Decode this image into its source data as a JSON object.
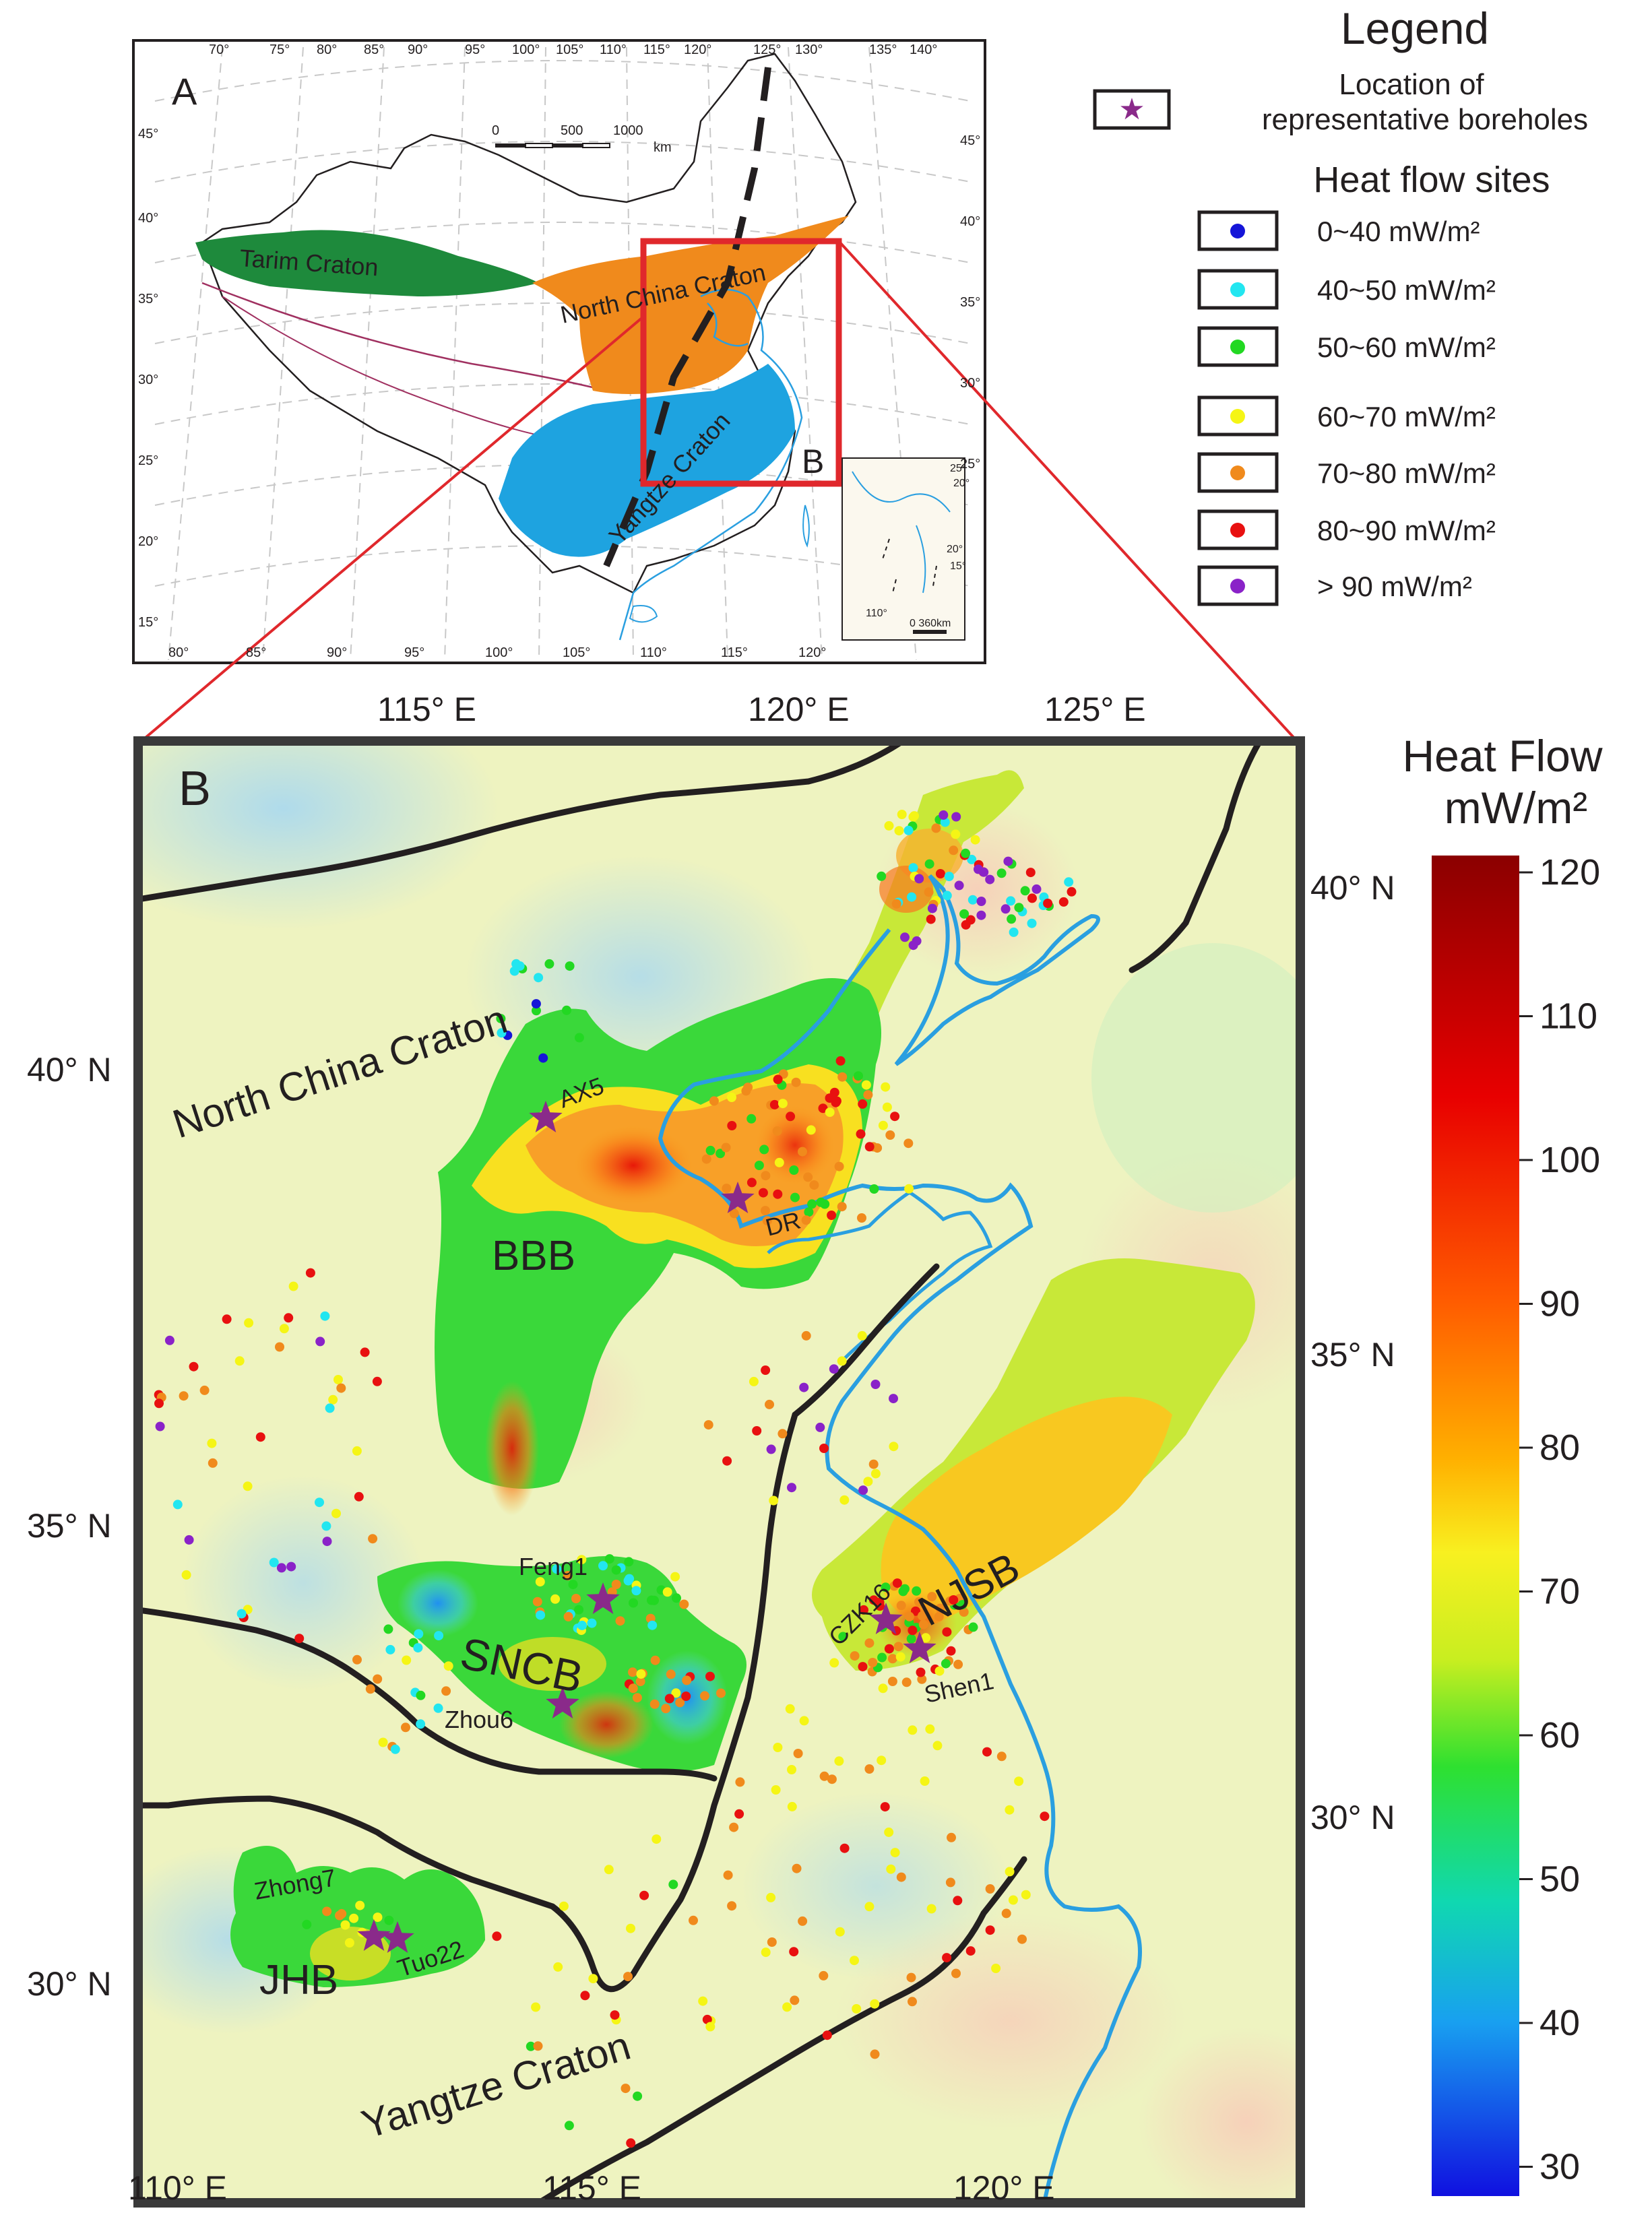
{
  "panel_a": {
    "label": "A",
    "lon_labels_top": [
      "70°",
      "75°",
      "80°",
      "85°",
      "90°",
      "95°",
      "100°",
      "105°",
      "110°",
      "115°",
      "120°",
      "125°",
      "130°",
      "135°",
      "140°"
    ],
    "lon_labels_bottom": [
      "80°",
      "85°",
      "90°",
      "95°",
      "100°",
      "105°",
      "110°",
      "115°",
      "120°"
    ],
    "lat_labels_left": [
      "45°",
      "40°",
      "35°",
      "30°",
      "25°",
      "20°",
      "15°"
    ],
    "lat_labels_right": [
      "45°",
      "40°",
      "35°",
      "30°",
      "25°"
    ],
    "scale_ticks": [
      "0",
      "500",
      "1000"
    ],
    "scale_unit": "km",
    "cratons": [
      {
        "name": "Tarim Craton",
        "color": "#1e8a3c"
      },
      {
        "name": "North China Craton",
        "color": "#f08a1c"
      },
      {
        "name": "Yangtze Craton",
        "color": "#1ea3e0"
      }
    ],
    "inset_box_label": "B",
    "inset_map": {
      "lat_labels": [
        "25°",
        "20°",
        "20°",
        "15°"
      ],
      "lon_label": "110°",
      "scale_text": "0    360km"
    }
  },
  "legend": {
    "title": "Legend",
    "borehole_label_line1": "Location of",
    "borehole_label_line2": "representative boreholes",
    "heat_flow_title": "Heat flow sites",
    "classes": [
      {
        "label": "0~40 mW/m²",
        "color": "#1515d8"
      },
      {
        "label": "40~50 mW/m²",
        "color": "#22e6f0"
      },
      {
        "label": "50~60 mW/m²",
        "color": "#22d822"
      },
      {
        "label": "60~70 mW/m²",
        "color": "#f5f515"
      },
      {
        "label": "70~80 mW/m²",
        "color": "#f08a1c"
      },
      {
        "label": "80~90 mW/m²",
        "color": "#e81010"
      },
      {
        "label": "> 90 mW/m²",
        "color": "#8a22c8"
      }
    ]
  },
  "panel_b": {
    "label": "B",
    "lon_labels_top": [
      "115° E",
      "120° E",
      "125° E"
    ],
    "lon_labels_bottom": [
      "110° E",
      "115° E",
      "120° E"
    ],
    "lat_labels_left": [
      "40° N",
      "35° N",
      "30° N"
    ],
    "lat_labels_right": [
      "40° N",
      "35° N",
      "30° N"
    ],
    "region_labels": [
      "North China Craton",
      "Yangtze Craton"
    ],
    "basins": [
      "BBB",
      "SNCB",
      "NJSB",
      "JHB"
    ],
    "boreholes": [
      "AX5",
      "DR",
      "Feng1",
      "Zhou6",
      "CZK16",
      "Shen1",
      "Zhong7",
      "Tuo22"
    ]
  },
  "colorbar": {
    "title_line1": "Heat Flow",
    "title_line2": "mW/m²",
    "ticks": [
      "120",
      "110",
      "100",
      "90",
      "80",
      "70",
      "60",
      "50",
      "40",
      "30"
    ]
  }
}
